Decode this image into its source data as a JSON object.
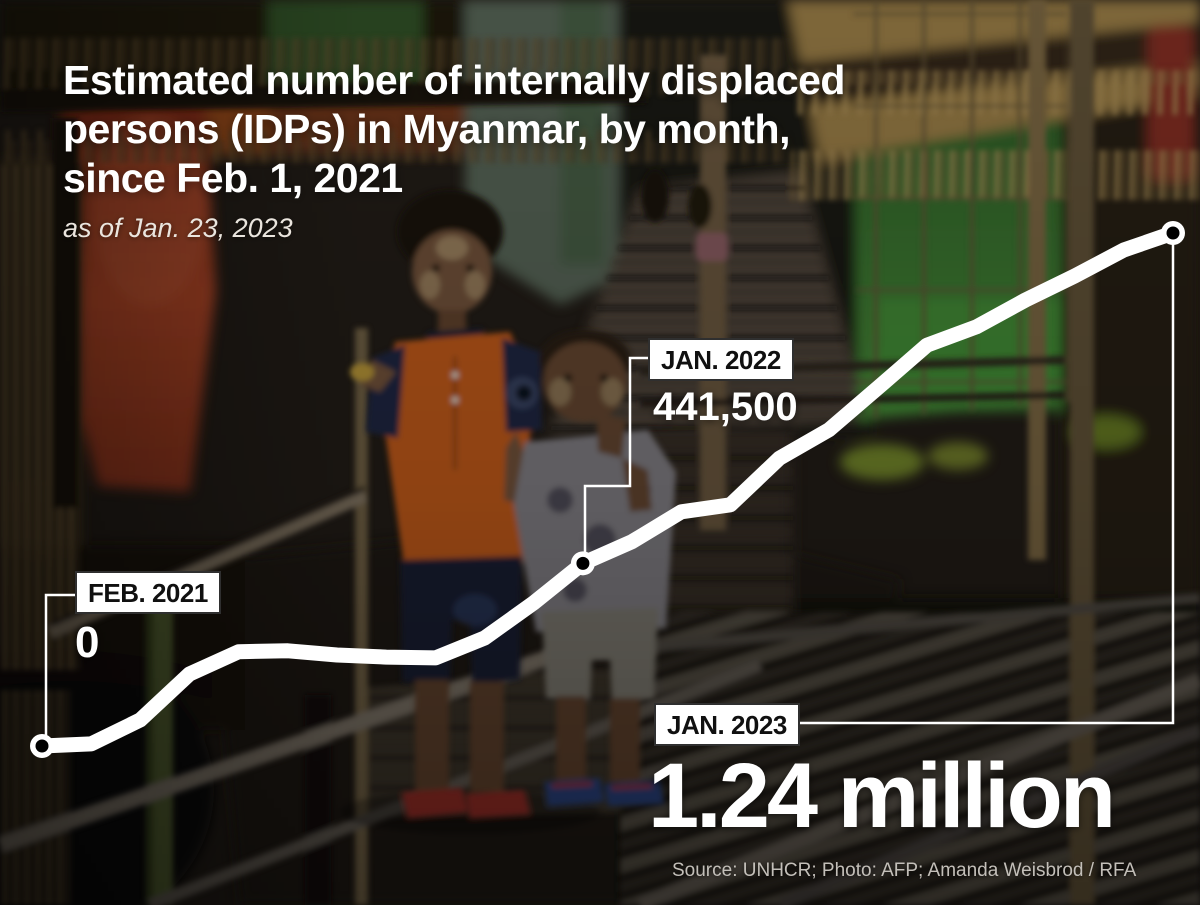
{
  "title": {
    "full": "Estimated number of internally displaced persons (IDPs) in Myanmar, by month, since Feb. 1, 2021",
    "lines": [
      "Estimated number of internally displaced",
      "persons (IDPs) in Myanmar, by month,",
      "since Feb. 1, 2021"
    ]
  },
  "subtitle": "as of Jan. 23, 2023",
  "source": "Source: UNHCR; Photo: AFP; Amanda Weisbrod / RFA",
  "annotations": {
    "feb2021": {
      "label": "FEB. 2021",
      "value": "0"
    },
    "jan2022": {
      "label": "JAN. 2022",
      "value": "441,500"
    },
    "jan2023": {
      "label": "JAN. 2023",
      "value": "1.24 million"
    }
  },
  "colors": {
    "line": "#ffffff",
    "marker_dot": "#000000",
    "label_bg": "#ffffff",
    "label_text": "#101010",
    "value_text": "#ffffff",
    "source_text": "#c3bfb9"
  },
  "chart_data": {
    "type": "line",
    "title": "Estimated number of internally displaced persons (IDPs) in Myanmar, by month, since Feb. 1, 2021",
    "subtitle": "as of Jan. 23, 2023",
    "unit": "persons",
    "x": [
      "Feb 2021",
      "Mar 2021",
      "Apr 2021",
      "May 2021",
      "Jun 2021",
      "Jul 2021",
      "Aug 2021",
      "Sep 2021",
      "Oct 2021",
      "Nov 2021",
      "Dec 2021",
      "Jan 2022",
      "Feb 2022",
      "Mar 2022",
      "Apr 2022",
      "May 2022",
      "Jun 2022",
      "Jul 2022",
      "Aug 2022",
      "Sep 2022",
      "Oct 2022",
      "Nov 2022",
      "Dec 2022",
      "Jan 2023"
    ],
    "values": [
      0,
      5000,
      63000,
      174000,
      228000,
      230000,
      220000,
      215000,
      213000,
      261000,
      346000,
      441500,
      494000,
      566000,
      583000,
      696000,
      764000,
      866000,
      969000,
      1013000,
      1078000,
      1136000,
      1199000,
      1240000
    ],
    "ylim": [
      0,
      1300000
    ],
    "grid": false,
    "legend": "none",
    "axes_hidden": true,
    "line_color": "#ffffff",
    "annotated_points": [
      {
        "x": "Feb 2021",
        "label": "FEB. 2021",
        "value": 0,
        "index": 0
      },
      {
        "x": "Jan 2022",
        "label": "JAN. 2022",
        "value": 441500,
        "index": 11
      },
      {
        "x": "Jan 2023",
        "label": "JAN. 2023",
        "value": 1240000,
        "index": 23
      }
    ]
  }
}
